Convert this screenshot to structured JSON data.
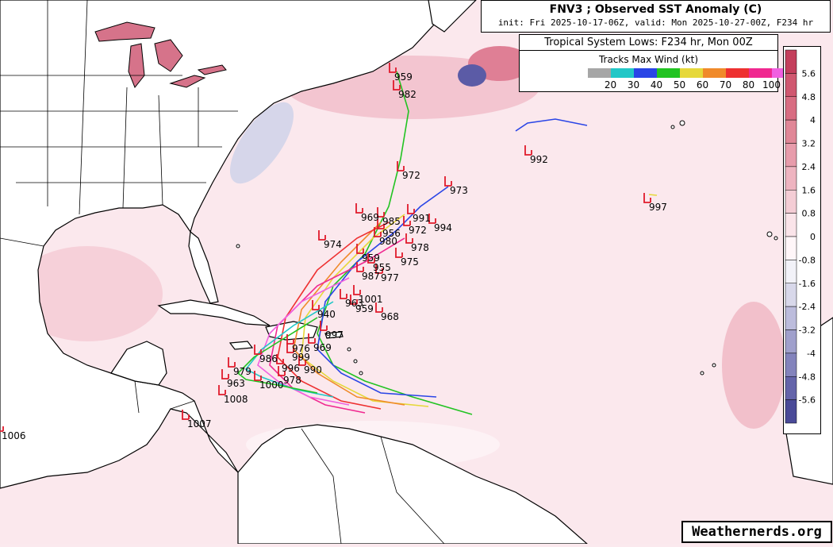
{
  "title": {
    "main": "FNV3 ; Observed SST Anomaly (C)",
    "sub": "init: Fri 2025-10-17-06Z, valid: Mon 2025-10-27-00Z, F234 hr"
  },
  "legend": {
    "header": "Tropical System Lows: F234 hr, Mon 00Z",
    "subheader": "Tracks Max Wind (kt)",
    "swatches": [
      "#a6a6a6",
      "#22c7c7",
      "#2a45e6",
      "#22c322",
      "#e6d83a",
      "#f08a2a",
      "#ee3030",
      "#f02890",
      "#f060e0"
    ],
    "wind_labels": [
      "20",
      "30",
      "40",
      "50",
      "60",
      "70",
      "80",
      "100"
    ]
  },
  "colorbar": {
    "labels": [
      "5.6",
      "4.8",
      "4",
      "3.2",
      "2.4",
      "1.6",
      "0.8",
      "0",
      "-0.8",
      "-1.6",
      "-2.4",
      "-3.2",
      "-4",
      "-4.8",
      "-5.6"
    ],
    "colors": [
      "#c43f5c",
      "#d05870",
      "#d86d82",
      "#e08797",
      "#e79cab",
      "#eeb4c0",
      "#f4cdd5",
      "#fae4e9",
      "#fff6f8",
      "#f2f2f8",
      "#d8d8ea",
      "#bcbcdc",
      "#a0a0cc",
      "#8383bc",
      "#6464aa",
      "#4a4a98"
    ]
  },
  "pressure_labels": [
    {
      "text": "959"
    },
    {
      "text": "982"
    },
    {
      "text": "992"
    },
    {
      "text": "972"
    },
    {
      "text": "973"
    },
    {
      "text": "997"
    },
    {
      "text": "969"
    },
    {
      "text": "985"
    },
    {
      "text": "991"
    },
    {
      "text": "994"
    },
    {
      "text": "956"
    },
    {
      "text": "972"
    },
    {
      "text": "974"
    },
    {
      "text": "980"
    },
    {
      "text": "978"
    },
    {
      "text": "959"
    },
    {
      "text": "975"
    },
    {
      "text": "955"
    },
    {
      "text": "987"
    },
    {
      "text": "977"
    },
    {
      "text": "1001"
    },
    {
      "text": "963"
    },
    {
      "text": "959"
    },
    {
      "text": "940"
    },
    {
      "text": "968"
    },
    {
      "text": "997"
    },
    {
      "text": "969"
    },
    {
      "text": "976"
    },
    {
      "text": "986"
    },
    {
      "text": "999"
    },
    {
      "text": "996"
    },
    {
      "text": "990"
    },
    {
      "text": "978"
    },
    {
      "text": "979"
    },
    {
      "text": "963"
    },
    {
      "text": "1000"
    },
    {
      "text": "1008"
    },
    {
      "text": "1007"
    },
    {
      "text": "1006"
    }
  ],
  "brand": "Weathernerds.org"
}
